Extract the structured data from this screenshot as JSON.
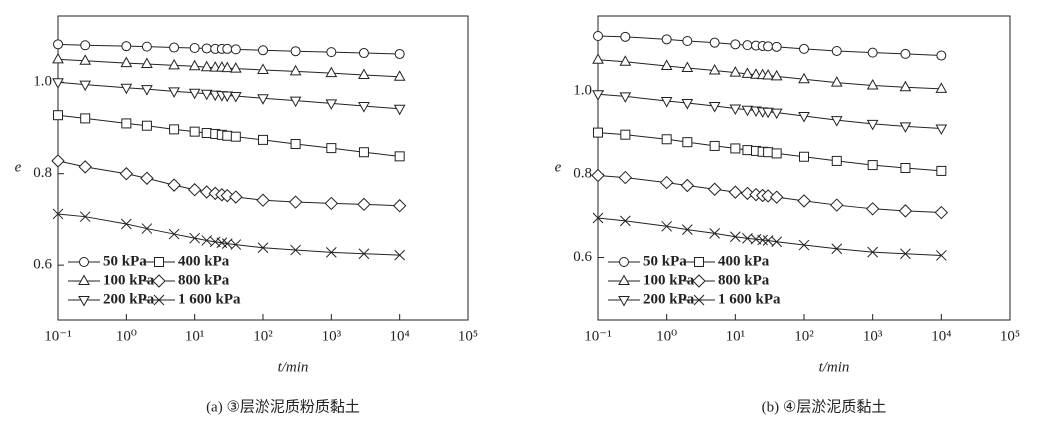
{
  "chart_data": [
    {
      "type": "line",
      "xlabel": "t/min",
      "ylabel": "e",
      "caption": "(a) ③层淤泥质粉质黏土",
      "xscale": "log",
      "xlim": [
        0.1,
        100000
      ],
      "ylim": [
        0.48,
        1.145
      ],
      "xticks": [
        {
          "value": 0.1,
          "label": "10⁻¹"
        },
        {
          "value": 1,
          "label": "10⁰"
        },
        {
          "value": 10,
          "label": "10¹"
        },
        {
          "value": 100,
          "label": "10²"
        },
        {
          "value": 1000,
          "label": "10³"
        },
        {
          "value": 10000,
          "label": "10⁴"
        },
        {
          "value": 100000,
          "label": "10⁵"
        }
      ],
      "yticks": [
        0.6,
        0.8,
        {
          "value": 1,
          "label": "1.0"
        }
      ],
      "legend": "lower left",
      "legend_columns": 2,
      "x": [
        0.1,
        0.25,
        1,
        2,
        5,
        10,
        15,
        20,
        25,
        30,
        40,
        100,
        300,
        1000,
        3000,
        10000
      ],
      "series": [
        {
          "name": "50 kPa",
          "color": "#222222",
          "marker": "o",
          "values": [
            1.083,
            1.081,
            1.079,
            1.078,
            1.076,
            1.075,
            1.074,
            1.073,
            1.073,
            1.073,
            1.072,
            1.07,
            1.068,
            1.066,
            1.064,
            1.062
          ]
        },
        {
          "name": "100 kPa",
          "color": "#222222",
          "marker": "^",
          "values": [
            1.05,
            1.047,
            1.042,
            1.04,
            1.037,
            1.035,
            1.033,
            1.032,
            1.032,
            1.031,
            1.03,
            1.027,
            1.024,
            1.02,
            1.016,
            1.012
          ]
        },
        {
          "name": "200 kPa",
          "color": "#222222",
          "marker": "v",
          "values": [
            1.0,
            0.995,
            0.988,
            0.985,
            0.98,
            0.977,
            0.975,
            0.973,
            0.972,
            0.971,
            0.97,
            0.965,
            0.96,
            0.954,
            0.948,
            0.942
          ]
        },
        {
          "name": "400 kPa",
          "color": "#222222",
          "marker": "s",
          "values": [
            0.928,
            0.921,
            0.91,
            0.905,
            0.897,
            0.892,
            0.889,
            0.887,
            0.885,
            0.883,
            0.881,
            0.874,
            0.865,
            0.856,
            0.847,
            0.838
          ]
        },
        {
          "name": "800 kPa",
          "color": "#222222",
          "marker": "D",
          "values": [
            0.828,
            0.815,
            0.8,
            0.79,
            0.775,
            0.765,
            0.76,
            0.757,
            0.754,
            0.752,
            0.749,
            0.742,
            0.738,
            0.735,
            0.733,
            0.73
          ]
        },
        {
          "name": "1 600 kPa",
          "color": "#222222",
          "marker": "x",
          "values": [
            0.712,
            0.706,
            0.69,
            0.68,
            0.668,
            0.659,
            0.654,
            0.651,
            0.649,
            0.647,
            0.645,
            0.638,
            0.633,
            0.628,
            0.625,
            0.622
          ]
        }
      ]
    },
    {
      "type": "line",
      "xlabel": "t/min",
      "ylabel": "e",
      "caption": "(b) ④层淤泥质黏土",
      "xscale": "log",
      "xlim": [
        0.1,
        100000
      ],
      "ylim": [
        0.45,
        1.18
      ],
      "xticks": [
        {
          "value": 0.1,
          "label": "10⁻¹"
        },
        {
          "value": 1,
          "label": "10⁰"
        },
        {
          "value": 10,
          "label": "10¹"
        },
        {
          "value": 100,
          "label": "10²"
        },
        {
          "value": 1000,
          "label": "10³"
        },
        {
          "value": 10000,
          "label": "10⁴"
        },
        {
          "value": 100000,
          "label": "10⁵"
        }
      ],
      "yticks": [
        0.6,
        0.8,
        {
          "value": 1,
          "label": "1.0"
        }
      ],
      "legend": "lower left",
      "legend_columns": 2,
      "x": [
        0.1,
        0.25,
        1,
        2,
        5,
        10,
        15,
        20,
        25,
        30,
        40,
        100,
        300,
        1000,
        3000,
        10000
      ],
      "series": [
        {
          "name": "50 kPa",
          "color": "#222222",
          "marker": "o",
          "values": [
            1.132,
            1.13,
            1.124,
            1.12,
            1.116,
            1.112,
            1.11,
            1.109,
            1.108,
            1.107,
            1.106,
            1.101,
            1.096,
            1.092,
            1.089,
            1.085
          ]
        },
        {
          "name": "100 kPa",
          "color": "#222222",
          "marker": "^",
          "values": [
            1.075,
            1.07,
            1.06,
            1.055,
            1.049,
            1.044,
            1.041,
            1.039,
            1.038,
            1.037,
            1.035,
            1.028,
            1.02,
            1.013,
            1.009,
            1.005
          ]
        },
        {
          "name": "200 kPa",
          "color": "#222222",
          "marker": "v",
          "values": [
            0.992,
            0.987,
            0.976,
            0.971,
            0.964,
            0.958,
            0.955,
            0.953,
            0.951,
            0.95,
            0.948,
            0.94,
            0.93,
            0.921,
            0.915,
            0.91
          ]
        },
        {
          "name": "400 kPa",
          "color": "#222222",
          "marker": "s",
          "values": [
            0.9,
            0.895,
            0.884,
            0.877,
            0.868,
            0.862,
            0.858,
            0.856,
            0.854,
            0.853,
            0.85,
            0.842,
            0.832,
            0.822,
            0.815,
            0.808
          ]
        },
        {
          "name": "800 kPa",
          "color": "#222222",
          "marker": "D",
          "values": [
            0.797,
            0.792,
            0.78,
            0.773,
            0.764,
            0.757,
            0.754,
            0.751,
            0.749,
            0.748,
            0.745,
            0.736,
            0.726,
            0.717,
            0.712,
            0.708
          ]
        },
        {
          "name": "1 600 kPa",
          "color": "#222222",
          "marker": "x",
          "values": [
            0.695,
            0.688,
            0.675,
            0.667,
            0.658,
            0.65,
            0.646,
            0.644,
            0.642,
            0.641,
            0.638,
            0.63,
            0.621,
            0.613,
            0.609,
            0.605
          ]
        }
      ]
    }
  ]
}
